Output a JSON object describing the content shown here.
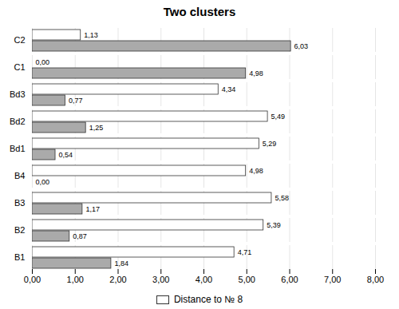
{
  "chart_data": {
    "type": "bar",
    "orientation": "horizontal",
    "title": "Two clusters",
    "categories": [
      "C2",
      "C1",
      "Bd3",
      "Bd2",
      "Bd1",
      "B4",
      "B3",
      "B2",
      "B1"
    ],
    "series": [
      {
        "name": "Distance to № 8",
        "color": "#ffffff",
        "values": [
          1.13,
          0.0,
          4.34,
          5.49,
          5.29,
          4.98,
          5.58,
          5.39,
          4.71
        ],
        "value_labels": [
          "1,13",
          "0,00",
          "4,34",
          "5,49",
          "5,29",
          "4,98",
          "5,58",
          "5,39",
          "4,71"
        ]
      },
      {
        "color": "#aaaaaa",
        "values": [
          6.03,
          4.98,
          0.77,
          1.25,
          0.54,
          0.0,
          1.17,
          0.87,
          1.84
        ],
        "value_labels": [
          "6,03",
          "4,98",
          "0,77",
          "1,25",
          "0,54",
          "0,00",
          "1,17",
          "0,87",
          "1,84"
        ]
      }
    ],
    "xlim": [
      0,
      8.0
    ],
    "xticks": [
      {
        "value": 0.0,
        "label": "0,00"
      },
      {
        "value": 1.0,
        "label": "1,00"
      },
      {
        "value": 2.0,
        "label": "2,00"
      },
      {
        "value": 3.0,
        "label": "3,00"
      },
      {
        "value": 4.0,
        "label": "4,00"
      },
      {
        "value": 5.0,
        "label": "5,00"
      },
      {
        "value": 6.0,
        "label": "6,00"
      },
      {
        "value": 7.0,
        "label": "7,00"
      },
      {
        "value": 8.0,
        "label": "8,00"
      }
    ],
    "grid": true,
    "data_labels": true,
    "legend": "bottom"
  }
}
